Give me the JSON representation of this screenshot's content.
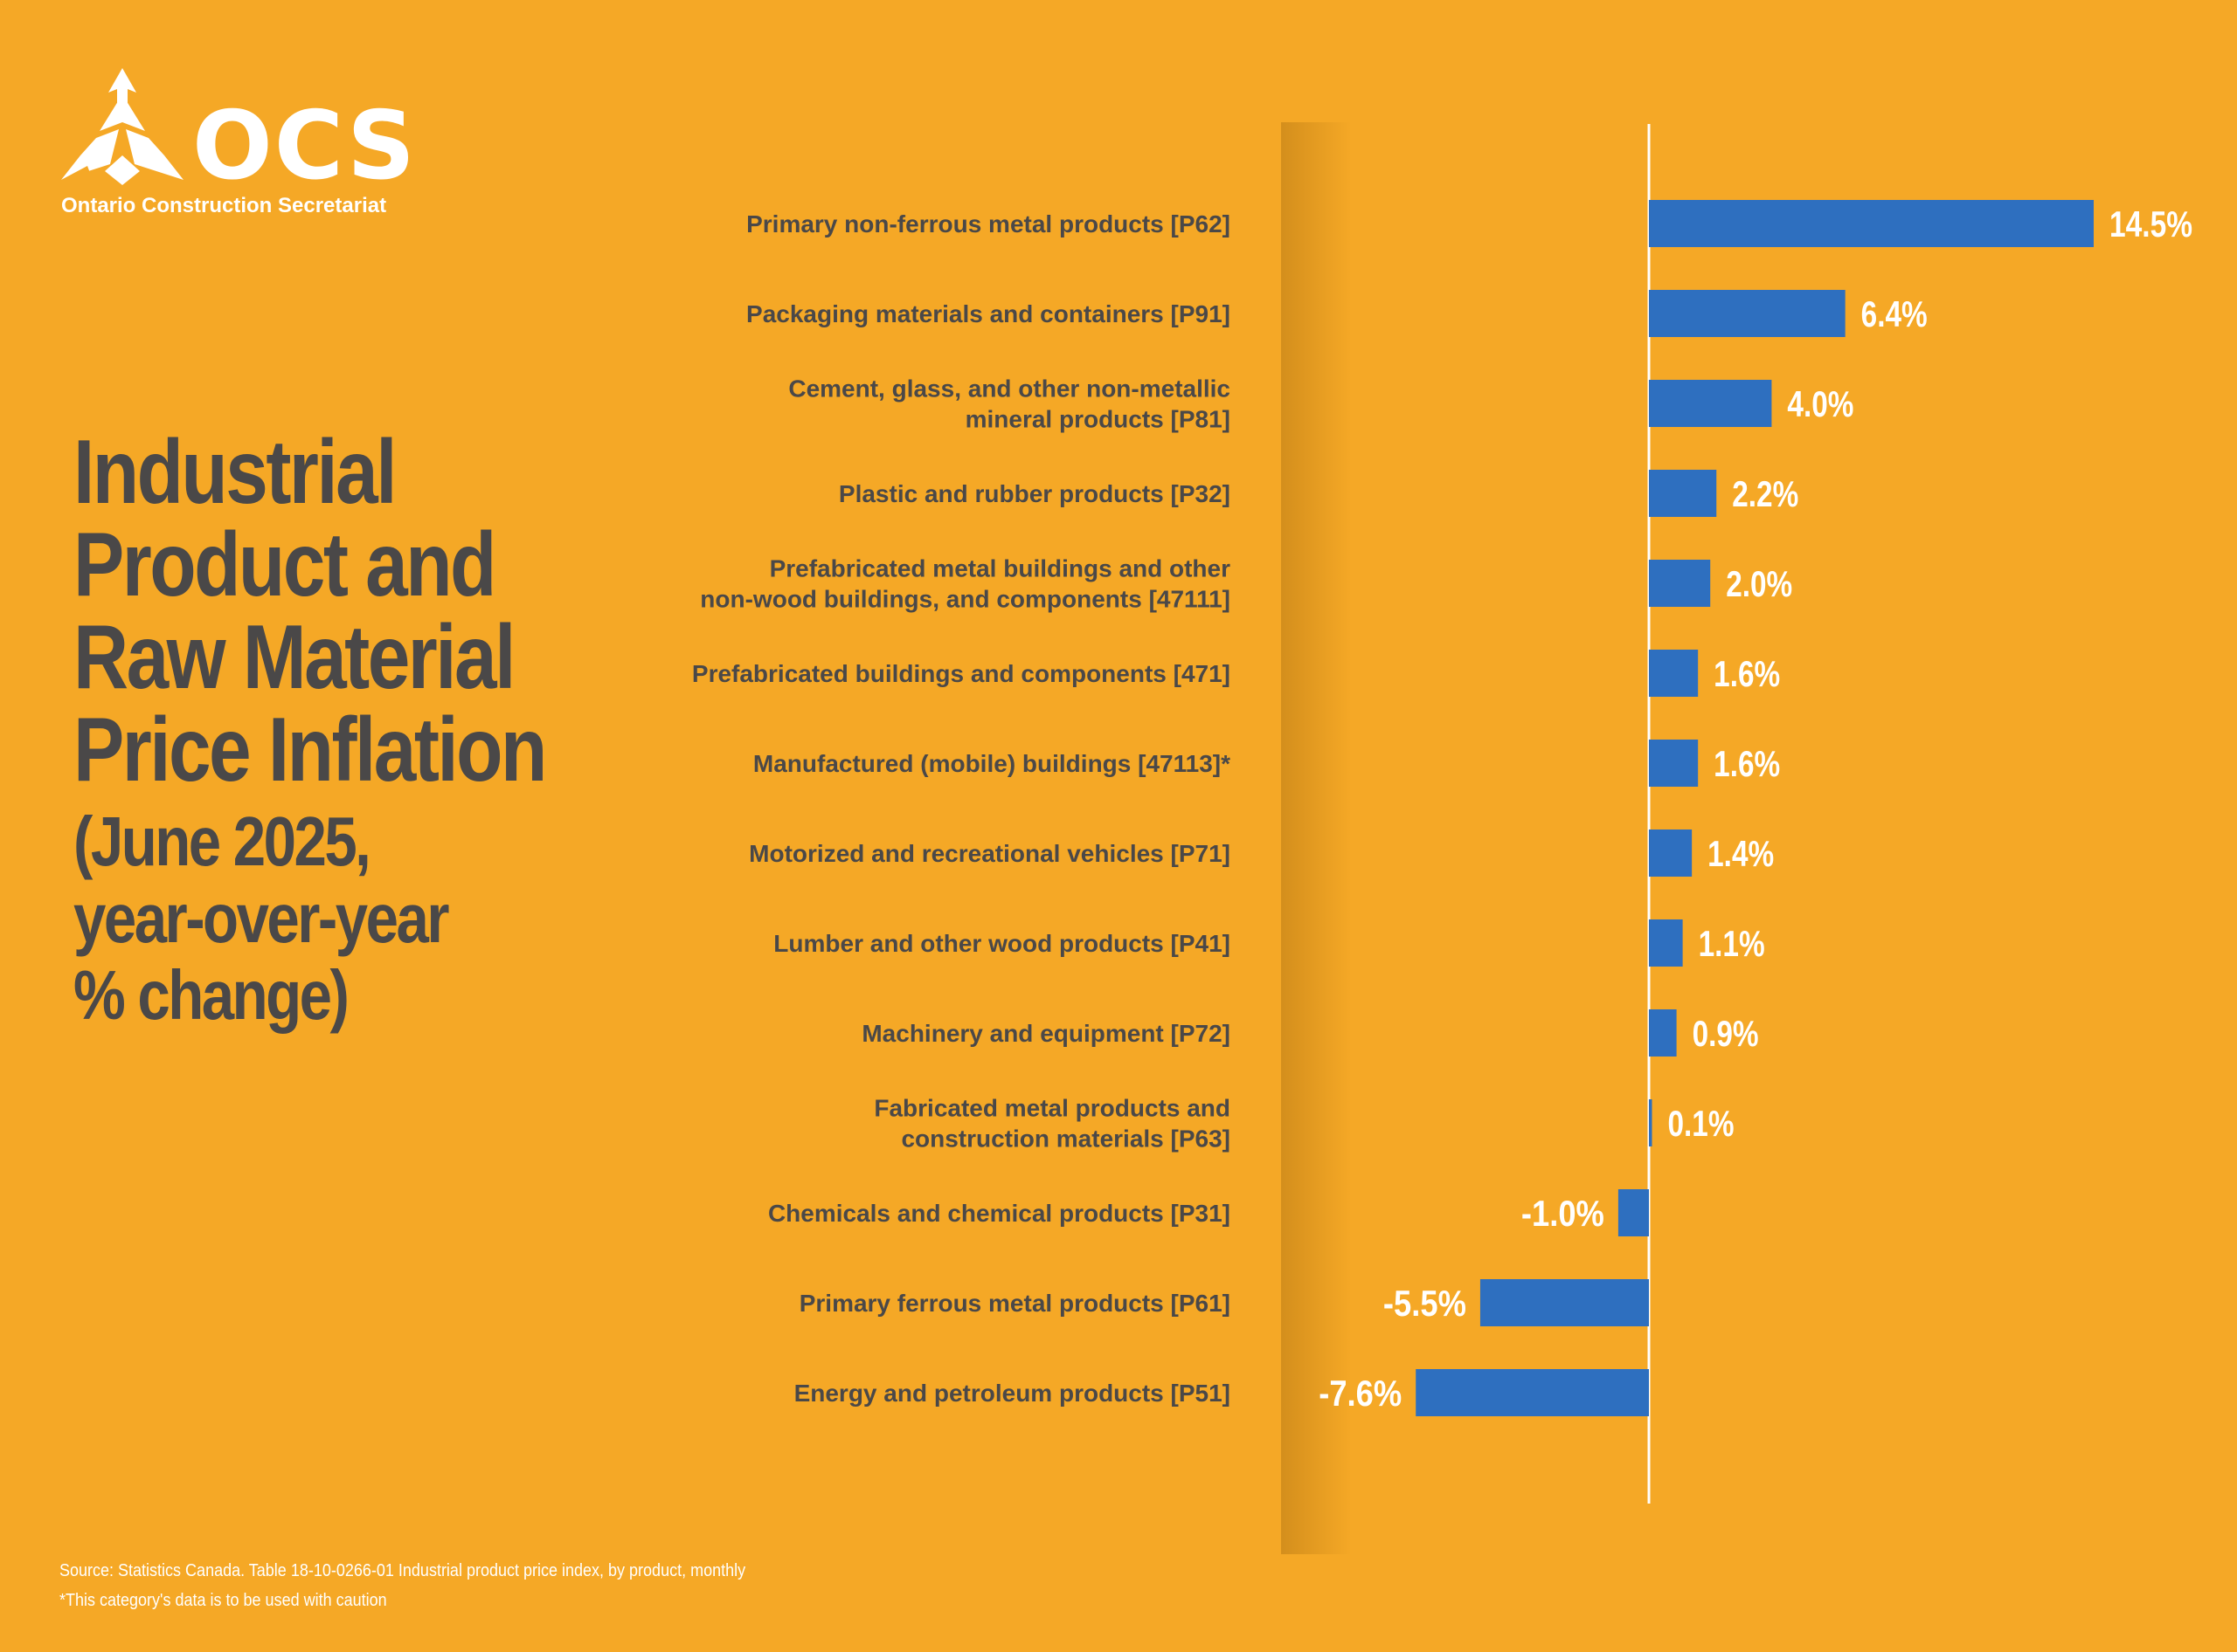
{
  "brand": {
    "logo_text": "OCS",
    "logo_subtitle": "Ontario Construction Secretariat",
    "colors": {
      "background": "#F5A826",
      "bar": "#2E6FBF",
      "text_dark": "#4A4848",
      "text_light": "#FFFFFF"
    }
  },
  "heading": {
    "title_lines": [
      "Industrial",
      "Product and",
      "Raw Material",
      "Price Inflation"
    ],
    "subtitle_lines": [
      "(June 2025,",
      "year-over-year",
      "% change)"
    ]
  },
  "footer": {
    "source": "Source: Statistics Canada. Table 18-10-0266-01  Industrial product price index, by product, monthly",
    "note": "*This category's data is to be used with caution"
  },
  "chart_data": {
    "type": "bar",
    "orientation": "horizontal",
    "unit": "%",
    "xlim": [
      -10.5,
      17.5
    ],
    "categories": [
      [
        "Primary non-ferrous metal products [P62]"
      ],
      [
        "Packaging materials and containers [P91]"
      ],
      [
        "Cement, glass, and other non-metallic",
        "mineral products [P81]"
      ],
      [
        "Plastic and rubber products [P32]"
      ],
      [
        "Prefabricated metal buildings and other",
        "non-wood buildings, and components [47111]"
      ],
      [
        "Prefabricated buildings and components [471]"
      ],
      [
        "Manufactured (mobile) buildings [47113]*"
      ],
      [
        "Motorized and recreational vehicles [P71]"
      ],
      [
        "Lumber and other wood products [P41]"
      ],
      [
        "Machinery and equipment [P72]"
      ],
      [
        "Fabricated metal products and",
        "construction materials [P63]"
      ],
      [
        "Chemicals and chemical products [P31]"
      ],
      [
        "Primary ferrous metal products [P61]"
      ],
      [
        "Energy and petroleum products [P51]"
      ]
    ],
    "values": [
      14.5,
      6.4,
      4.0,
      2.2,
      2.0,
      1.6,
      1.6,
      1.4,
      1.1,
      0.9,
      0.1,
      -1.0,
      -5.5,
      -7.6
    ],
    "value_labels": [
      "14.5%",
      "6.4%",
      "4.0%",
      "2.2%",
      "2.0%",
      "1.6%",
      "1.6%",
      "1.4%",
      "1.1%",
      "0.9%",
      "0.1%",
      "-1.0%",
      "-5.5%",
      "-7.6%"
    ],
    "title": "",
    "xlabel": "",
    "ylabel": "",
    "grid": false,
    "legend": "none"
  }
}
